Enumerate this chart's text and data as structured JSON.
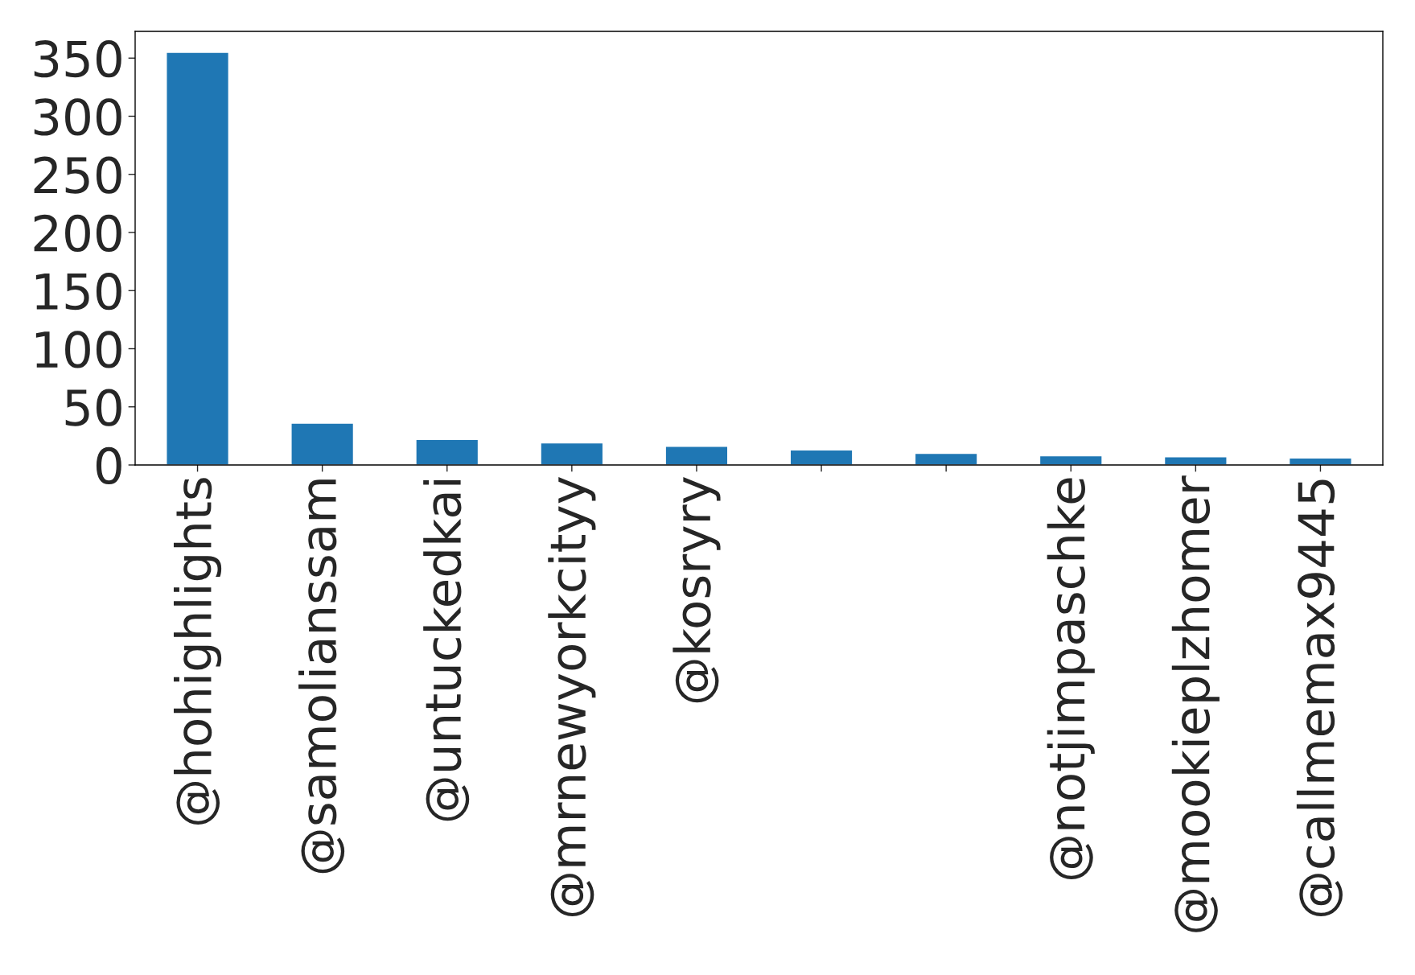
{
  "chart_data": {
    "type": "bar",
    "categories": [
      "@hohighlights",
      "@samolianssam",
      "@untuckedkai",
      "@mrnewyorkcityy",
      "@kosryry",
      null,
      null,
      "@notjimpaschke",
      "@mookieplzhomer",
      "@callmemax9445"
    ],
    "values": [
      355,
      36,
      22,
      19,
      16,
      13,
      10,
      8,
      7,
      6
    ],
    "color": "#1f77b4",
    "ylim": [
      0,
      373
    ],
    "yticks": [
      0,
      50,
      100,
      150,
      200,
      250,
      300,
      350
    ],
    "grid": false,
    "legend": false
  }
}
